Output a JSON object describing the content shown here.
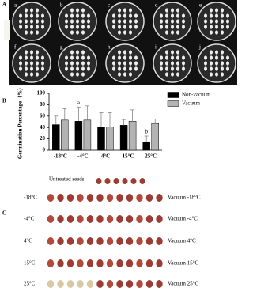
{
  "panel_a": {
    "label": "A",
    "dish_labels": [
      "a",
      "b",
      "c",
      "d",
      "e",
      "f",
      "g",
      "h",
      "i",
      "j"
    ]
  },
  "panel_b_label": "B",
  "chart_data": {
    "type": "bar",
    "y_label": "Germination Percentage（%）",
    "categories": [
      "-18°C",
      "-4°C",
      "4°C",
      "15°C",
      "25°C"
    ],
    "series": [
      {
        "name": "Non-vacuum",
        "color": "#000000",
        "values": [
          45,
          51,
          41,
          44,
          15
        ],
        "errors": [
          15,
          25,
          25,
          10,
          10
        ]
      },
      {
        "name": "Vacuum",
        "color": "#b3b3b3",
        "values": [
          53,
          53,
          41,
          51,
          47
        ],
        "errors": [
          20,
          25,
          25,
          20,
          8
        ]
      }
    ],
    "annotations": [
      {
        "text": "a",
        "x": "-4°C"
      },
      {
        "text": "b",
        "x": "25°C"
      }
    ],
    "ylim": [
      0,
      100
    ],
    "yticks": [
      0,
      20,
      40,
      60,
      80,
      100
    ],
    "grid": false,
    "legend": "top-right"
  },
  "panel_c": {
    "label": "C",
    "untreated": "Untreated seeds",
    "rows": [
      {
        "left": "-18°C",
        "right": "Vacuum -18°C"
      },
      {
        "left": "-4°C",
        "right": "Vacuum -4°C"
      },
      {
        "left": "4°C",
        "right": "Vacuum 4°C"
      },
      {
        "left": "15°C",
        "right": "Vacuum 15°C"
      },
      {
        "left": "25°C",
        "right": "Vacuum 25°C"
      }
    ]
  }
}
